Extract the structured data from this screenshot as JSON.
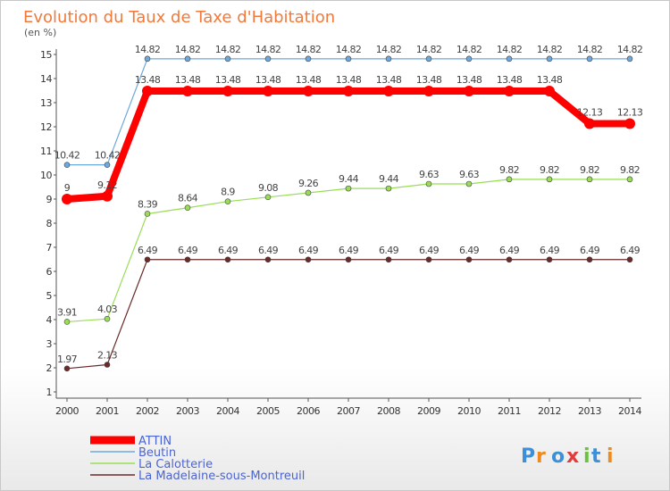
{
  "chart_data": {
    "type": "line",
    "title": "Evolution du Taux de Taxe d'Habitation",
    "subtitle": "(en %)",
    "x": [
      "2000",
      "2001",
      "2002",
      "2003",
      "2004",
      "2005",
      "2006",
      "2007",
      "2008",
      "2009",
      "2010",
      "2011",
      "2012",
      "2013",
      "2014"
    ],
    "ylim": [
      0.5,
      15.3
    ],
    "yticks": [
      1,
      2,
      3,
      4,
      5,
      6,
      7,
      8,
      9,
      10,
      11,
      12,
      13,
      14,
      15
    ],
    "grid": false,
    "legend_position": "bottom-left",
    "series": [
      {
        "name": "ATTIN",
        "color": "#ff0000",
        "width": 8,
        "values": [
          9.0,
          9.12,
          13.48,
          13.48,
          13.48,
          13.48,
          13.48,
          13.48,
          13.48,
          13.48,
          13.48,
          13.48,
          13.48,
          12.13,
          12.13
        ],
        "labels": [
          "9",
          "9.12",
          "13.48",
          "13.48",
          "13.48",
          "13.48",
          "13.48",
          "13.48",
          "13.48",
          "13.48",
          "13.48",
          "13.48",
          "13.48",
          "12.13",
          "12.13"
        ]
      },
      {
        "name": "Beutin",
        "color": "#6fa8dc",
        "width": 1.2,
        "values": [
          10.42,
          10.42,
          14.82,
          14.82,
          14.82,
          14.82,
          14.82,
          14.82,
          14.82,
          14.82,
          14.82,
          14.82,
          14.82,
          14.82,
          14.82
        ],
        "labels": [
          "10.42",
          "10.42",
          "14.82",
          "14.82",
          "14.82",
          "14.82",
          "14.82",
          "14.82",
          "14.82",
          "14.82",
          "14.82",
          "14.82",
          "14.82",
          "14.82",
          "14.82"
        ]
      },
      {
        "name": "La Calotterie",
        "color": "#99dd55",
        "width": 1.2,
        "values": [
          3.91,
          4.03,
          8.39,
          8.64,
          8.9,
          9.08,
          9.26,
          9.44,
          9.44,
          9.63,
          9.63,
          9.82,
          9.82,
          9.82,
          9.82
        ],
        "labels": [
          "3.91",
          "4.03",
          "8.39",
          "8.64",
          "8.9",
          "9.08",
          "9.26",
          "9.44",
          "9.44",
          "9.63",
          "9.63",
          "9.82",
          "9.82",
          "9.82",
          "9.82"
        ]
      },
      {
        "name": "La Madelaine-sous-Montreuil",
        "color": "#6b2a2a",
        "width": 1.2,
        "values": [
          1.97,
          2.13,
          6.49,
          6.49,
          6.49,
          6.49,
          6.49,
          6.49,
          6.49,
          6.49,
          6.49,
          6.49,
          6.49,
          6.49,
          6.49
        ],
        "labels": [
          "1.97",
          "2.13",
          "6.49",
          "6.49",
          "6.49",
          "6.49",
          "6.49",
          "6.49",
          "6.49",
          "6.49",
          "6.49",
          "6.49",
          "6.49",
          "6.49",
          "6.49"
        ]
      }
    ]
  },
  "logo": {
    "text": "Proxiti"
  }
}
